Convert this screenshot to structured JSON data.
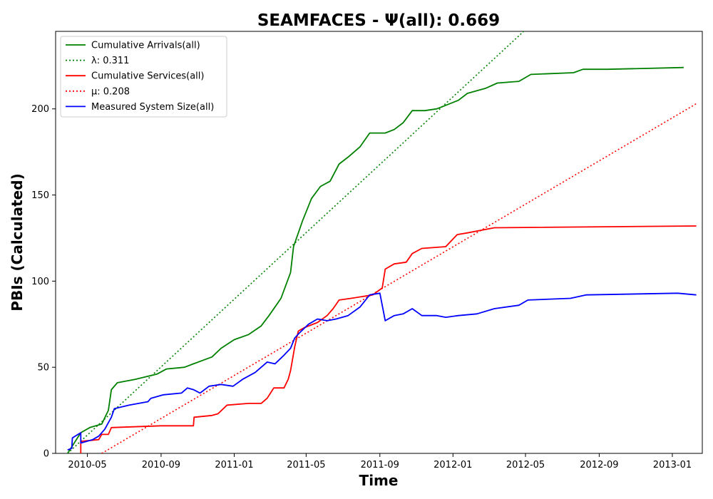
{
  "colors": {
    "arrivals": "#008000",
    "services": "#ff0000",
    "system": "#0000ff"
  },
  "chart_data": {
    "type": "line",
    "title": "SEAMFACES -  Ψ(all): 0.669",
    "xlabel": "Time",
    "ylabel": "PBIs (Calculated)",
    "x_ticks": [
      "2010-05",
      "2010-09",
      "2011-01",
      "2011-05",
      "2011-09",
      "2012-01",
      "2012-05",
      "2012-09",
      "2013-01"
    ],
    "y_ticks": [
      0,
      50,
      100,
      150,
      200
    ],
    "xlim": [
      "2010-03-09",
      "2013-02-20"
    ],
    "ylim": [
      0,
      245
    ],
    "grid": false,
    "legend_position": "top-left",
    "series": [
      {
        "name": "Cumulative Arrivals(all)",
        "style": "solid",
        "color": "#008000",
        "points": [
          [
            "2010-03-29",
            0
          ],
          [
            "2010-04-20",
            12
          ],
          [
            "2010-05-05",
            15
          ],
          [
            "2010-05-25",
            17
          ],
          [
            "2010-06-05",
            25
          ],
          [
            "2010-06-10",
            37
          ],
          [
            "2010-06-20",
            41
          ],
          [
            "2010-07-20",
            43
          ],
          [
            "2010-08-25",
            46
          ],
          [
            "2010-09-10",
            49
          ],
          [
            "2010-10-10",
            50
          ],
          [
            "2010-10-25",
            52
          ],
          [
            "2010-11-25",
            56
          ],
          [
            "2010-12-10",
            61
          ],
          [
            "2011-01-01",
            66
          ],
          [
            "2011-01-25",
            69
          ],
          [
            "2011-02-15",
            74
          ],
          [
            "2011-02-28",
            80
          ],
          [
            "2011-03-20",
            90
          ],
          [
            "2011-04-05",
            105
          ],
          [
            "2011-04-10",
            120
          ],
          [
            "2011-04-25",
            135
          ],
          [
            "2011-05-10",
            148
          ],
          [
            "2011-05-25",
            155
          ],
          [
            "2011-06-10",
            158
          ],
          [
            "2011-06-25",
            168
          ],
          [
            "2011-07-10",
            172
          ],
          [
            "2011-07-30",
            178
          ],
          [
            "2011-08-15",
            186
          ],
          [
            "2011-09-10",
            186
          ],
          [
            "2011-09-25",
            188
          ],
          [
            "2011-10-10",
            192
          ],
          [
            "2011-10-25",
            199
          ],
          [
            "2011-11-15",
            199
          ],
          [
            "2011-12-05",
            200
          ],
          [
            "2012-01-10",
            205
          ],
          [
            "2012-01-25",
            209
          ],
          [
            "2012-02-25",
            212
          ],
          [
            "2012-03-15",
            215
          ],
          [
            "2012-04-20",
            216
          ],
          [
            "2012-05-10",
            220
          ],
          [
            "2012-07-20",
            221
          ],
          [
            "2012-08-05",
            223
          ],
          [
            "2012-09-15",
            223
          ],
          [
            "2013-01-20",
            224
          ]
        ]
      },
      {
        "name": "λ: 0.311",
        "style": "dotted",
        "color": "#008000",
        "points": [
          [
            "2010-03-29",
            0
          ],
          [
            "2012-04-28",
            245
          ]
        ]
      },
      {
        "name": "Cumulative Services(all)",
        "style": "solid",
        "color": "#ff0000",
        "points": [
          [
            "2010-04-20",
            0
          ],
          [
            "2010-04-20",
            7
          ],
          [
            "2010-05-20",
            8
          ],
          [
            "2010-05-25",
            11
          ],
          [
            "2010-06-05",
            11
          ],
          [
            "2010-06-10",
            15
          ],
          [
            "2010-09-01",
            16
          ],
          [
            "2010-10-25",
            16
          ],
          [
            "2010-10-26",
            21
          ],
          [
            "2010-11-25",
            22
          ],
          [
            "2010-12-05",
            23
          ],
          [
            "2010-12-20",
            28
          ],
          [
            "2011-01-25",
            29
          ],
          [
            "2011-02-15",
            29
          ],
          [
            "2011-02-25",
            32
          ],
          [
            "2011-03-08",
            38
          ],
          [
            "2011-03-25",
            38
          ],
          [
            "2011-04-01",
            43
          ],
          [
            "2011-04-05",
            48
          ],
          [
            "2011-04-12",
            62
          ],
          [
            "2011-04-18",
            71
          ],
          [
            "2011-04-28",
            73
          ],
          [
            "2011-05-20",
            76
          ],
          [
            "2011-06-05",
            80
          ],
          [
            "2011-06-15",
            84
          ],
          [
            "2011-06-25",
            89
          ],
          [
            "2011-07-15",
            90
          ],
          [
            "2011-08-20",
            92
          ],
          [
            "2011-09-05",
            96
          ],
          [
            "2011-09-10",
            107
          ],
          [
            "2011-09-25",
            110
          ],
          [
            "2011-10-15",
            111
          ],
          [
            "2011-10-25",
            116
          ],
          [
            "2011-11-10",
            119
          ],
          [
            "2011-12-20",
            120
          ],
          [
            "2012-01-08",
            127
          ],
          [
            "2012-01-25",
            128
          ],
          [
            "2012-03-10",
            131
          ],
          [
            "2013-02-10",
            132
          ]
        ]
      },
      {
        "name": "μ: 0.208",
        "style": "dotted",
        "color": "#ff0000",
        "points": [
          [
            "2010-05-25",
            0
          ],
          [
            "2013-02-10",
            203
          ]
        ]
      },
      {
        "name": "Measured System Size(all)",
        "style": "solid",
        "color": "#0000ff",
        "points": [
          [
            "2010-03-29",
            2
          ],
          [
            "2010-04-05",
            3
          ],
          [
            "2010-04-06",
            9
          ],
          [
            "2010-04-20",
            12
          ],
          [
            "2010-04-20",
            6
          ],
          [
            "2010-05-10",
            8
          ],
          [
            "2010-05-20",
            10
          ],
          [
            "2010-05-30",
            14
          ],
          [
            "2010-06-10",
            21
          ],
          [
            "2010-06-15",
            26
          ],
          [
            "2010-07-10",
            28
          ],
          [
            "2010-08-10",
            30
          ],
          [
            "2010-08-15",
            32
          ],
          [
            "2010-09-05",
            34
          ],
          [
            "2010-10-05",
            35
          ],
          [
            "2010-10-15",
            38
          ],
          [
            "2010-10-25",
            37
          ],
          [
            "2010-11-05",
            35
          ],
          [
            "2010-11-20",
            39
          ],
          [
            "2010-12-10",
            40
          ],
          [
            "2010-12-30",
            39
          ],
          [
            "2011-01-15",
            43
          ],
          [
            "2011-02-05",
            47
          ],
          [
            "2011-02-25",
            53
          ],
          [
            "2011-03-10",
            52
          ],
          [
            "2011-03-25",
            57
          ],
          [
            "2011-04-05",
            61
          ],
          [
            "2011-04-12",
            67
          ],
          [
            "2011-04-20",
            70
          ],
          [
            "2011-05-05",
            75
          ],
          [
            "2011-05-20",
            78
          ],
          [
            "2011-06-05",
            77
          ],
          [
            "2011-06-20",
            78
          ],
          [
            "2011-07-10",
            80
          ],
          [
            "2011-07-30",
            85
          ],
          [
            "2011-08-15",
            92
          ],
          [
            "2011-09-01",
            93
          ],
          [
            "2011-09-10",
            77
          ],
          [
            "2011-09-25",
            80
          ],
          [
            "2011-10-10",
            81
          ],
          [
            "2011-10-25",
            84
          ],
          [
            "2011-11-10",
            80
          ],
          [
            "2011-12-05",
            80
          ],
          [
            "2011-12-20",
            79
          ],
          [
            "2012-01-10",
            80
          ],
          [
            "2012-02-10",
            81
          ],
          [
            "2012-03-10",
            84
          ],
          [
            "2012-04-20",
            86
          ],
          [
            "2012-05-05",
            89
          ],
          [
            "2012-07-15",
            90
          ],
          [
            "2012-08-10",
            92
          ],
          [
            "2013-01-10",
            93
          ],
          [
            "2013-02-10",
            92
          ]
        ]
      }
    ]
  }
}
